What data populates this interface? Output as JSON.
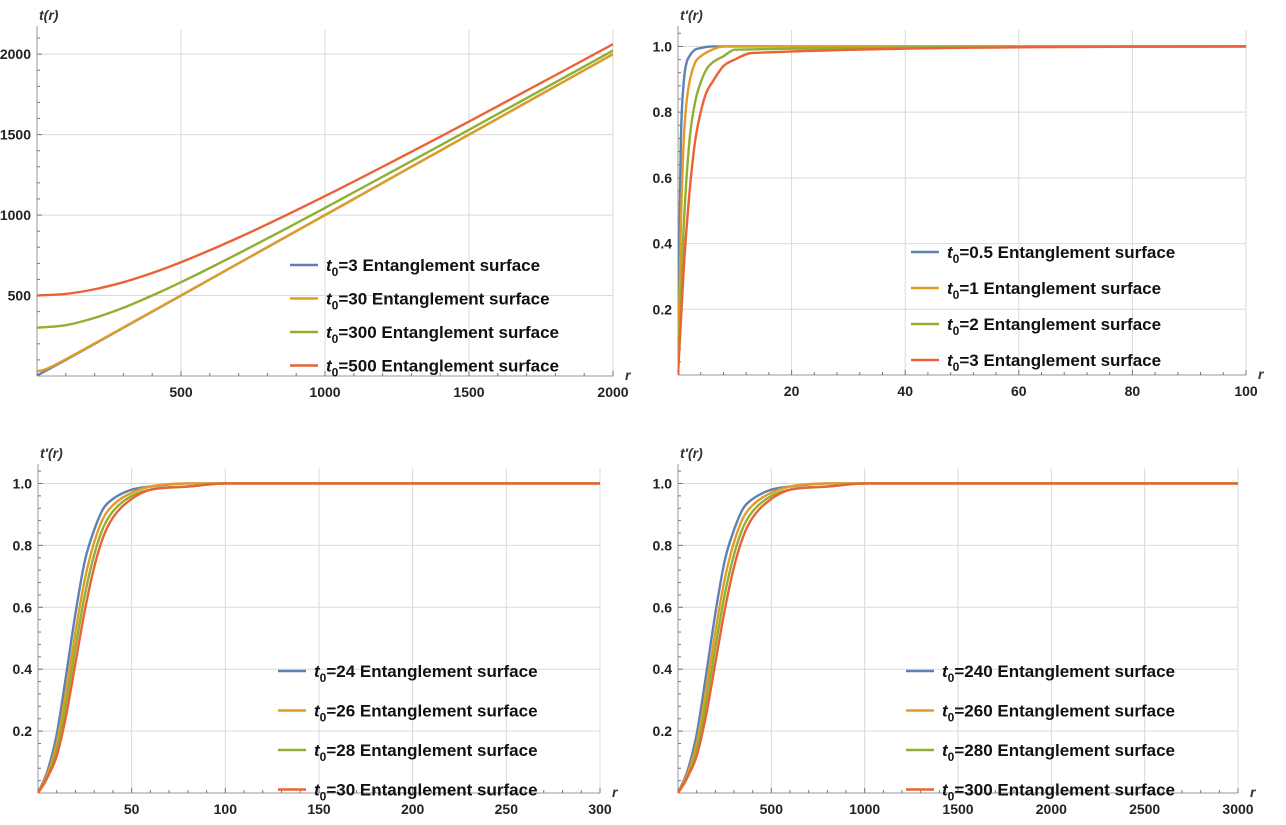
{
  "colors": [
    "#5e81b5",
    "#e19c24",
    "#8fb032",
    "#eb6235"
  ],
  "chart_data": [
    {
      "type": "line",
      "ylabel": "t(r)",
      "xlabel": "r",
      "xlim": [
        0,
        2000
      ],
      "ylim": [
        0,
        2150
      ],
      "xticks": [
        500,
        1000,
        1500,
        2000
      ],
      "yticks": [
        500,
        1000,
        1500,
        2000
      ],
      "xtick_labels": [
        "500",
        "1000",
        "1500",
        "2000"
      ],
      "ytick_labels": [
        "500",
        "1000",
        "1500",
        "2000"
      ],
      "grid": true,
      "legend_position": "bottom-right",
      "series": [
        {
          "name": "t0=3 Entanglement surface",
          "legend_sym": "t",
          "legend_sub": "0",
          "legend_rest": "=3 Entanglement surface",
          "x": [
            0,
            100,
            250,
            500,
            1000,
            1500,
            2000
          ],
          "y": [
            3,
            100,
            250,
            500,
            1000,
            1500,
            2000
          ]
        },
        {
          "name": "t0=30 Entanglement surface",
          "legend_sym": "t",
          "legend_sub": "0",
          "legend_rest": "=30 Entanglement surface",
          "x": [
            0,
            25,
            50,
            100,
            250,
            500,
            1000,
            1500,
            2000
          ],
          "y": [
            30,
            39,
            58,
            104,
            252,
            501,
            1000,
            1500,
            2000
          ]
        },
        {
          "name": "t0=300 Entanglement surface",
          "legend_sym": "t",
          "legend_sub": "0",
          "legend_rest": "=300 Entanglement surface",
          "x": [
            0,
            100,
            200,
            300,
            400,
            500,
            700,
            1000,
            1500,
            2000
          ],
          "y": [
            300,
            316,
            361,
            424,
            500,
            583,
            762,
            1044,
            1530,
            2022
          ]
        },
        {
          "name": "t0=500 Entanglement surface",
          "legend_sym": "t",
          "legend_sub": "0",
          "legend_rest": "=500 Entanglement surface",
          "x": [
            0,
            100,
            200,
            300,
            400,
            500,
            700,
            1000,
            1500,
            2000
          ],
          "y": [
            500,
            510,
            539,
            583,
            640,
            707,
            860,
            1118,
            1581,
            2062
          ]
        }
      ]
    },
    {
      "type": "line",
      "ylabel": "t′(r)",
      "xlabel": "r",
      "xlim": [
        0,
        100
      ],
      "ylim": [
        0,
        1.05
      ],
      "xticks": [
        20,
        40,
        60,
        80,
        100
      ],
      "yticks": [
        0.2,
        0.4,
        0.6,
        0.8,
        1.0
      ],
      "xtick_labels": [
        "20",
        "40",
        "60",
        "80",
        "100"
      ],
      "ytick_labels": [
        "0.2",
        "0.4",
        "0.6",
        "0.8",
        "1.0"
      ],
      "grid": true,
      "legend_position": "bottom-right",
      "series": [
        {
          "name": "t0=0.5 Entanglement surface",
          "legend_sym": "t",
          "legend_sub": "0",
          "legend_rest": "=0.5 Entanglement surface",
          "x": [
            0,
            0.2,
            0.5,
            1,
            1.5,
            2,
            3,
            4,
            6,
            100
          ],
          "y": [
            0,
            0.37,
            0.71,
            0.89,
            0.95,
            0.97,
            0.99,
            0.995,
            1.0,
            1.0
          ]
        },
        {
          "name": "t0=1 Entanglement surface",
          "legend_sym": "t",
          "legend_sub": "0",
          "legend_rest": "=1 Entanglement surface",
          "x": [
            0,
            0.5,
            1,
            1.5,
            2,
            3,
            4,
            6,
            8,
            100
          ],
          "y": [
            0,
            0.45,
            0.71,
            0.83,
            0.89,
            0.95,
            0.97,
            0.99,
            1.0,
            1.0
          ]
        },
        {
          "name": "t0=2 Entanglement surface",
          "legend_sym": "t",
          "legend_sub": "0",
          "legend_rest": "=2 Entanglement surface",
          "x": [
            0,
            1,
            2,
            3,
            4,
            5,
            6,
            8,
            10,
            100
          ],
          "y": [
            0,
            0.45,
            0.71,
            0.83,
            0.89,
            0.93,
            0.95,
            0.97,
            0.99,
            1.0
          ]
        },
        {
          "name": "t0=3 Entanglement surface",
          "legend_sym": "t",
          "legend_sub": "0",
          "legend_rest": "=3 Entanglement surface",
          "x": [
            0,
            1,
            2,
            3,
            4,
            5,
            6,
            8,
            10,
            13,
            100
          ],
          "y": [
            0,
            0.32,
            0.55,
            0.71,
            0.8,
            0.86,
            0.89,
            0.94,
            0.96,
            0.98,
            1.0
          ]
        }
      ]
    },
    {
      "type": "line",
      "ylabel": "t′(r)",
      "xlabel": "r",
      "xlim": [
        0,
        300
      ],
      "ylim": [
        0,
        1.05
      ],
      "xticks": [
        50,
        100,
        150,
        200,
        250,
        300
      ],
      "yticks": [
        0.2,
        0.4,
        0.6,
        0.8,
        1.0
      ],
      "xtick_labels": [
        "50",
        "100",
        "150",
        "200",
        "250",
        "300"
      ],
      "ytick_labels": [
        "0.2",
        "0.4",
        "0.6",
        "0.8",
        "1.0"
      ],
      "grid": true,
      "legend_position": "bottom-right",
      "series": [
        {
          "name": "t0=24 Entanglement surface",
          "legend_sym": "t",
          "legend_sub": "0",
          "legend_rest": "=24 Entanglement surface",
          "x": [
            0,
            5,
            10,
            15,
            20,
            25,
            30,
            35,
            40,
            50,
            60,
            80,
            100,
            300
          ],
          "y": [
            0,
            0.07,
            0.19,
            0.38,
            0.58,
            0.75,
            0.85,
            0.92,
            0.95,
            0.98,
            0.99,
            1.0,
            1.0,
            1.0
          ]
        },
        {
          "name": "t0=26 Entanglement surface",
          "legend_sym": "t",
          "legend_sub": "0",
          "legend_rest": "=26 Entanglement surface",
          "x": [
            0,
            5,
            10,
            15,
            20,
            25,
            30,
            35,
            40,
            50,
            60,
            80,
            100,
            300
          ],
          "y": [
            0,
            0.06,
            0.16,
            0.33,
            0.52,
            0.69,
            0.81,
            0.89,
            0.93,
            0.97,
            0.99,
            1.0,
            1.0,
            1.0
          ]
        },
        {
          "name": "t0=28 Entanglement surface",
          "legend_sym": "t",
          "legend_sub": "0",
          "legend_rest": "=28 Entanglement surface",
          "x": [
            0,
            5,
            10,
            15,
            20,
            25,
            30,
            35,
            40,
            50,
            60,
            80,
            100,
            300
          ],
          "y": [
            0,
            0.05,
            0.14,
            0.29,
            0.47,
            0.64,
            0.77,
            0.86,
            0.91,
            0.96,
            0.98,
            0.99,
            1.0,
            1.0
          ]
        },
        {
          "name": "t0=30 Entanglement surface",
          "legend_sym": "t",
          "legend_sub": "0",
          "legend_rest": "=30 Entanglement surface",
          "x": [
            0,
            5,
            10,
            15,
            20,
            25,
            30,
            35,
            40,
            50,
            60,
            80,
            100,
            300
          ],
          "y": [
            0,
            0.05,
            0.12,
            0.25,
            0.42,
            0.59,
            0.73,
            0.83,
            0.89,
            0.95,
            0.98,
            0.99,
            1.0,
            1.0
          ]
        }
      ]
    },
    {
      "type": "line",
      "ylabel": "t′(r)",
      "xlabel": "r",
      "xlim": [
        0,
        3000
      ],
      "ylim": [
        0,
        1.05
      ],
      "xticks": [
        500,
        1000,
        1500,
        2000,
        2500,
        3000
      ],
      "yticks": [
        0.2,
        0.4,
        0.6,
        0.8,
        1.0
      ],
      "xtick_labels": [
        "500",
        "1000",
        "1500",
        "2000",
        "2500",
        "3000"
      ],
      "ytick_labels": [
        "0.2",
        "0.4",
        "0.6",
        "0.8",
        "1.0"
      ],
      "grid": true,
      "legend_position": "bottom-right",
      "series": [
        {
          "name": "t0=240 Entanglement surface",
          "legend_sym": "t",
          "legend_sub": "0",
          "legend_rest": "=240 Entanglement surface",
          "x": [
            0,
            50,
            100,
            150,
            200,
            250,
            300,
            350,
            400,
            500,
            600,
            800,
            1000,
            3000
          ],
          "y": [
            0,
            0.07,
            0.19,
            0.38,
            0.58,
            0.75,
            0.85,
            0.92,
            0.95,
            0.98,
            0.99,
            1.0,
            1.0,
            1.0
          ]
        },
        {
          "name": "t0=260 Entanglement surface",
          "legend_sym": "t",
          "legend_sub": "0",
          "legend_rest": "=260 Entanglement surface",
          "x": [
            0,
            50,
            100,
            150,
            200,
            250,
            300,
            350,
            400,
            500,
            600,
            800,
            1000,
            3000
          ],
          "y": [
            0,
            0.06,
            0.16,
            0.33,
            0.52,
            0.69,
            0.81,
            0.89,
            0.93,
            0.97,
            0.99,
            1.0,
            1.0,
            1.0
          ]
        },
        {
          "name": "t0=280 Entanglement surface",
          "legend_sym": "t",
          "legend_sub": "0",
          "legend_rest": "=280 Entanglement surface",
          "x": [
            0,
            50,
            100,
            150,
            200,
            250,
            300,
            350,
            400,
            500,
            600,
            800,
            1000,
            3000
          ],
          "y": [
            0,
            0.05,
            0.14,
            0.29,
            0.47,
            0.64,
            0.77,
            0.86,
            0.91,
            0.96,
            0.98,
            0.99,
            1.0,
            1.0
          ]
        },
        {
          "name": "t0=300 Entanglement surface",
          "legend_sym": "t",
          "legend_sub": "0",
          "legend_rest": "=300 Entanglement surface",
          "x": [
            0,
            50,
            100,
            150,
            200,
            250,
            300,
            350,
            400,
            500,
            600,
            800,
            1000,
            3000
          ],
          "y": [
            0,
            0.05,
            0.12,
            0.25,
            0.42,
            0.59,
            0.73,
            0.83,
            0.89,
            0.95,
            0.98,
            0.99,
            1.0,
            1.0
          ]
        }
      ]
    }
  ]
}
